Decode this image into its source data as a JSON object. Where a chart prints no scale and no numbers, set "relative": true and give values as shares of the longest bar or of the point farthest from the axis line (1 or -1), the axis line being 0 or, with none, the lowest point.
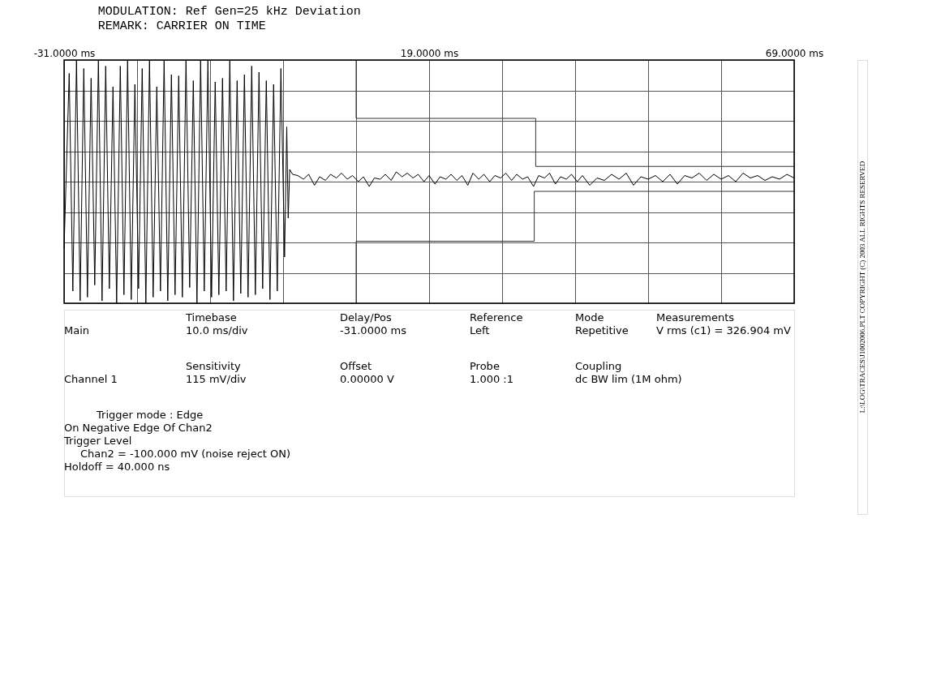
{
  "chart_data": {
    "type": "line",
    "relative": true,
    "title": "MODULATION: Ref Gen=25 kHz Deviation",
    "subtitle": "REMARK:     CARRIER ON TIME",
    "xlim": [
      -31,
      69
    ],
    "xticks": [
      {
        "value": -31,
        "label": "-31.0000 ms"
      },
      {
        "value": -21,
        "label": null
      },
      {
        "value": -11,
        "label": null
      },
      {
        "value": -1,
        "label": null
      },
      {
        "value": 9,
        "label": null
      },
      {
        "value": 19,
        "label": "19.0000 ms"
      },
      {
        "value": 29,
        "label": null
      },
      {
        "value": 39,
        "label": null
      },
      {
        "value": 49,
        "label": null
      },
      {
        "value": 59,
        "label": null
      },
      {
        "value": 69,
        "label": "69.0000 ms"
      }
    ],
    "grid": true,
    "legend": false,
    "series": [
      {
        "color": "#000000",
        "x": [
          -31,
          -30.3,
          -29.8,
          -29.3,
          -28.8,
          -28.3,
          -27.8,
          -27.3,
          -26.8,
          -26.3,
          -25.8,
          -25.3,
          -24.8,
          -24.3,
          -23.8,
          -23.3,
          -22.8,
          -22.3,
          -21.8,
          -21.3,
          -20.8,
          -20.3,
          -19.8,
          -19.3,
          -18.8,
          -18.3,
          -17.8,
          -17.3,
          -16.8,
          -16.3,
          -15.8,
          -15.3,
          -14.8,
          -14.3,
          -13.8,
          -13.3,
          -12.8,
          -12.3,
          -11.8,
          -11.3,
          -10.8,
          -10.3,
          -9.8,
          -9.3,
          -8.8,
          -8.3,
          -7.8,
          -7.3,
          -6.8,
          -6.3,
          -5.8,
          -5.3,
          -4.8,
          -4.3,
          -3.8,
          -3.3,
          -2.8,
          -2.3,
          -1.8,
          -1.3,
          -0.8,
          -0.5,
          -0.3,
          -0.1,
          0.3,
          1,
          1.8,
          2.5,
          3.3,
          4,
          4.8,
          5.5,
          6.3,
          7,
          7.8,
          8.5,
          9.3,
          10,
          10.8,
          11.5,
          12.3,
          13,
          13.8,
          14.5,
          15.3,
          16,
          16.8,
          17.5,
          18.3,
          19,
          19.8,
          20.5,
          21.3,
          22,
          22.8,
          23.5,
          24.3,
          25,
          25.8,
          26.5,
          27.3,
          28,
          28.8,
          29.5,
          30.3,
          31,
          31.8,
          32.5,
          33.3,
          34,
          34.8,
          35.5,
          36.3,
          37,
          37.8,
          38.5,
          39.3,
          40,
          41,
          42,
          43,
          44,
          45,
          46,
          47,
          48,
          49,
          50,
          51,
          52,
          53,
          54,
          55,
          56,
          57,
          58,
          59,
          60,
          61,
          62,
          63,
          64,
          65,
          66,
          67,
          68,
          69
        ],
        "values": [
          -0.55,
          0.89,
          -0.9,
          1,
          -0.98,
          0.93,
          -0.95,
          0.85,
          -0.85,
          1,
          -0.98,
          0.95,
          -0.88,
          0.78,
          -1,
          0.95,
          -0.93,
          1,
          -0.97,
          0.8,
          -0.88,
          0.93,
          -1,
          1,
          -0.95,
          0.78,
          -0.9,
          1,
          -0.98,
          0.88,
          -0.93,
          0.87,
          -0.95,
          1,
          -0.87,
          0.83,
          -1,
          1,
          -0.9,
          1,
          -0.95,
          0.82,
          -0.93,
          0.85,
          -0.9,
          1,
          -0.98,
          0.83,
          -0.92,
          0.88,
          -0.95,
          0.95,
          -0.93,
          0.9,
          -0.88,
          0.83,
          -0.97,
          0.8,
          -0.9,
          0.93,
          -0.62,
          0.45,
          -0.3,
          0.1,
          0.06,
          0.05,
          0.02,
          0.06,
          -0.03,
          0.04,
          0.01,
          0.06,
          0.03,
          0.07,
          0.02,
          0.05,
          0.0,
          0.04,
          -0.04,
          0.03,
          0.02,
          0.06,
          0.01,
          0.08,
          0.04,
          0.07,
          0.03,
          0.06,
          0.0,
          0.05,
          -0.02,
          0.04,
          0.02,
          0.06,
          0.01,
          0.05,
          -0.03,
          0.07,
          0.02,
          0.06,
          0.0,
          0.05,
          0.03,
          0.07,
          0.01,
          0.06,
          0.02,
          0.04,
          -0.04,
          0.05,
          0.03,
          0.07,
          -0.02,
          0.04,
          0.02,
          0.06,
          0.0,
          0.05,
          -0.03,
          0.03,
          0.01,
          0.06,
          0.02,
          0.07,
          -0.03,
          0.04,
          0.02,
          0.05,
          0.0,
          0.06,
          -0.02,
          0.05,
          0.03,
          0.07,
          0.01,
          0.06,
          0.02,
          0.05,
          0.0,
          0.07,
          0.03,
          0.05,
          0.01,
          0.04,
          0.02,
          0.06,
          0.03
        ]
      },
      {
        "color": "#333333",
        "x": [
          9,
          9,
          33.6,
          33.6,
          69
        ],
        "values": [
          1,
          0.52,
          0.52,
          0.125,
          0.125
        ]
      },
      {
        "color": "#333333",
        "x": [
          9,
          9,
          33.4,
          33.4,
          69
        ],
        "values": [
          -1,
          -0.49,
          -0.49,
          -0.08,
          -0.08
        ]
      }
    ],
    "annotations": [
      "Timebase",
      "10.0 ms/div",
      "Delay/Pos",
      "-31.0000 ms",
      "Reference",
      "Left",
      "Mode",
      "Repetitive",
      "Measurements",
      "V rms (c1) = 326.904 mV",
      "Main",
      "Sensitivity",
      "115  mV/div",
      "Offset",
      "0.00000  V",
      "Probe",
      "1.000 :1",
      "Coupling",
      "dc BW lim (1M ohm)",
      "Channel 1",
      "Trigger mode : Edge",
      "On Negative Edge Of Chan2",
      "Trigger Level",
      "Chan2 = -100.000 mV (noise reject ON)",
      "Holdoff = 40.000  ns",
      "L:\\LOG\\TRACES\\J1002006.PLT COPYRIGHT (C) 2003 ALL RIGHTS RESERVED"
    ]
  }
}
